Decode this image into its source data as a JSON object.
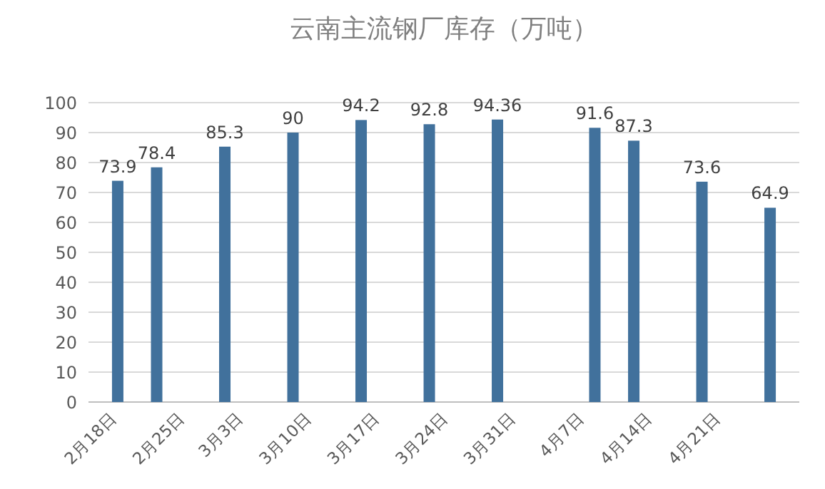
{
  "chart_data": {
    "type": "bar",
    "title": "云南主流钢厂库存（万吨）",
    "x": [
      "--02-18",
      "--02-22",
      "--03-01",
      "--03-08",
      "--03-15",
      "--03-22",
      "--03-29",
      "--04-08",
      "--04-12",
      "--04-19",
      "--04-26"
    ],
    "values": [
      73.9,
      78.4,
      85.3,
      90,
      94.2,
      92.8,
      94.36,
      91.6,
      87.3,
      73.6,
      64.9
    ],
    "color": "#41719c",
    "xlim": [
      "--02-15",
      "--04-29"
    ],
    "xticks": [
      {
        "value": "--02-18",
        "label": "2月18日"
      },
      {
        "value": "--02-25",
        "label": "2月25日"
      },
      {
        "value": "--03-03",
        "label": "3月3日"
      },
      {
        "value": "--03-10",
        "label": "3月10日"
      },
      {
        "value": "--03-17",
        "label": "3月17日"
      },
      {
        "value": "--03-24",
        "label": "3月24日"
      },
      {
        "value": "--03-31",
        "label": "3月31日"
      },
      {
        "value": "--04-07",
        "label": "4月7日"
      },
      {
        "value": "--04-14",
        "label": "4月14日"
      },
      {
        "value": "--04-21",
        "label": "4月21日"
      }
    ],
    "ylim": [
      0,
      100
    ],
    "yticks": [
      0,
      10,
      20,
      30,
      40,
      50,
      60,
      70,
      80,
      90,
      100
    ],
    "grid": "y",
    "data_labels": true
  }
}
